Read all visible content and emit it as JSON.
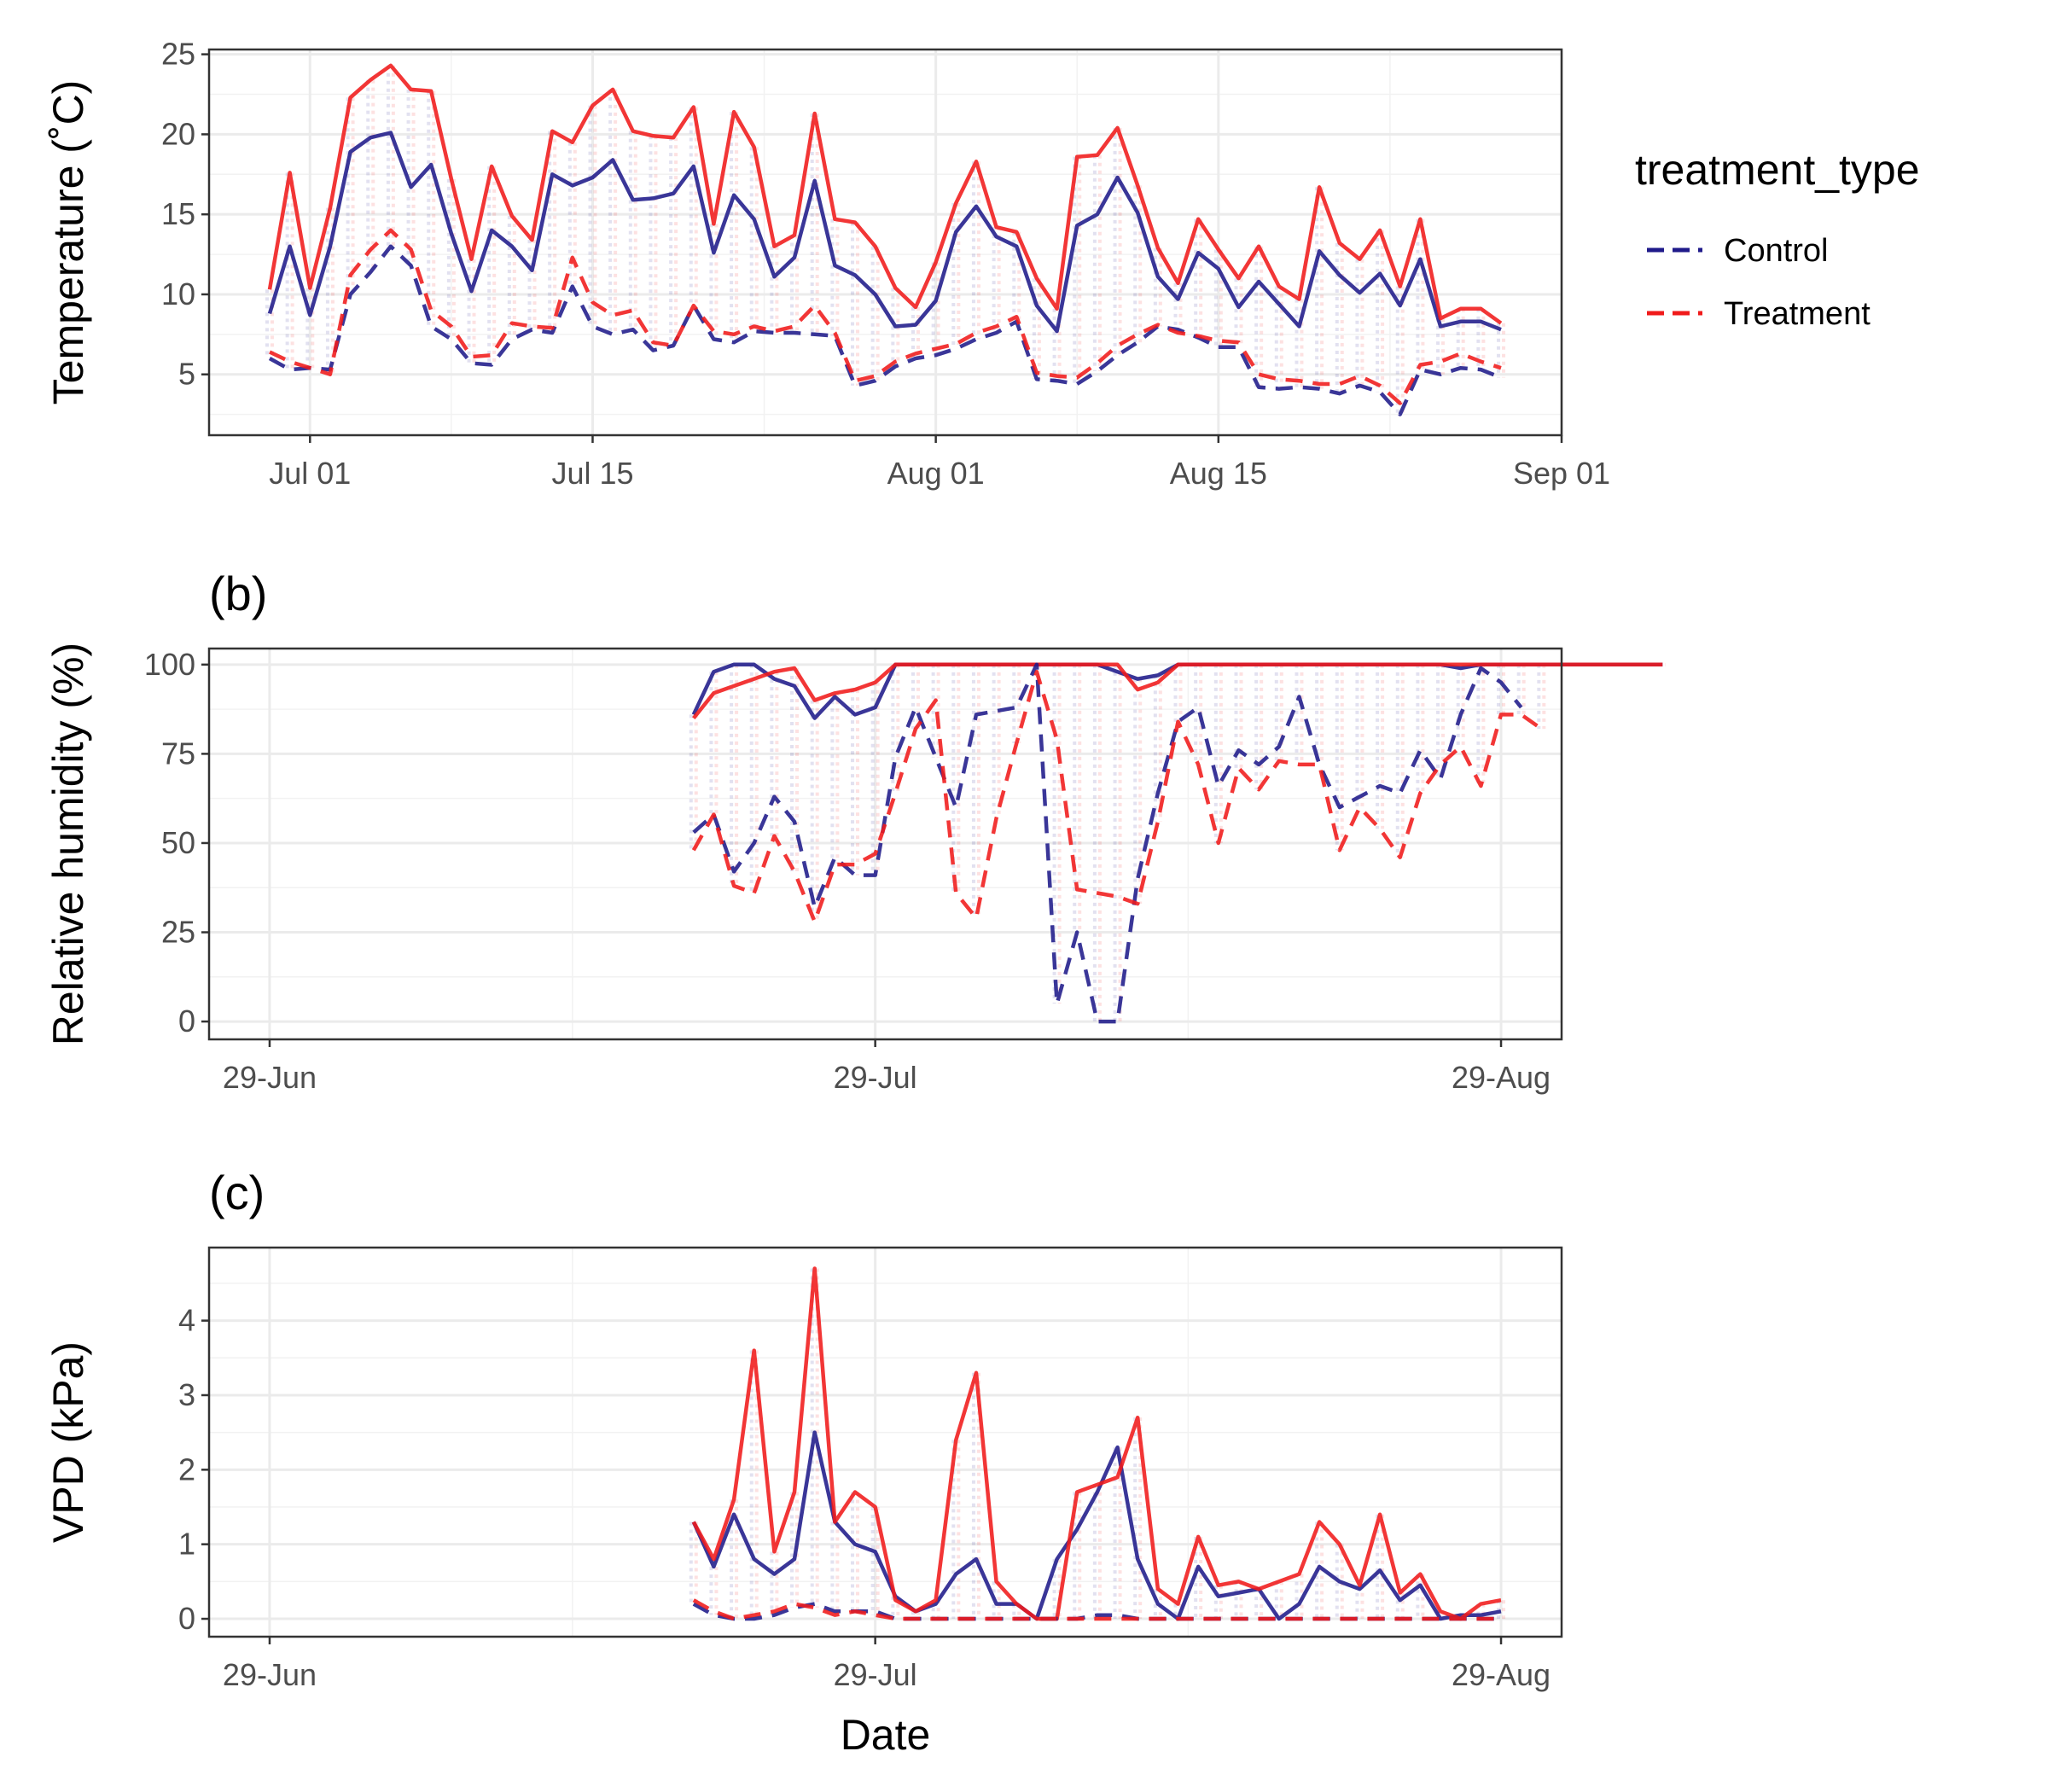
{
  "chart_data": [
    {
      "type": "line",
      "tag": "",
      "xlabel": "",
      "ylabel": "Temperature (˚C)",
      "ylim": [
        1.2,
        25.3
      ],
      "yticks": [
        5,
        10,
        15,
        20,
        25
      ],
      "xlim": [
        "2021-06-26",
        "2021-09-01"
      ],
      "xticks": [
        {
          "date": "2021-07-01",
          "label": "Jul 01"
        },
        {
          "date": "2021-07-15",
          "label": "Jul 15"
        },
        {
          "date": "2021-08-01",
          "label": "Aug 01"
        },
        {
          "date": "2021-08-15",
          "label": "Aug 15"
        },
        {
          "date": "2021-09-01",
          "label": "Sep 01"
        }
      ],
      "x_start": "2021-06-29",
      "series": [
        {
          "group": "Control",
          "stat": "max",
          "values": [
            8.8,
            13.0,
            8.7,
            13.0,
            18.9,
            19.8,
            20.1,
            16.7,
            18.1,
            13.8,
            10.2,
            14.0,
            13.0,
            11.5,
            17.5,
            16.8,
            17.3,
            18.4,
            15.9,
            16.0,
            16.3,
            18.0,
            12.6,
            16.2,
            14.7,
            11.1,
            12.3,
            17.1,
            11.8,
            11.2,
            10.0,
            8.0,
            8.1,
            9.6,
            13.9,
            15.5,
            13.6,
            13.0,
            9.3,
            7.7,
            14.3,
            15.0,
            17.3,
            15.1,
            11.1,
            9.7,
            12.6,
            11.6,
            9.2,
            10.8,
            9.4,
            8.0,
            12.7,
            11.2,
            10.1,
            11.3,
            9.3,
            12.2,
            8.0,
            8.3,
            8.3,
            7.8
          ]
        },
        {
          "group": "Treatment",
          "stat": "max",
          "values": [
            10.3,
            17.6,
            10.4,
            15.4,
            22.3,
            23.4,
            24.3,
            22.8,
            22.7,
            17.2,
            12.2,
            18.0,
            14.9,
            13.4,
            20.2,
            19.5,
            21.8,
            22.8,
            20.2,
            19.9,
            19.8,
            21.7,
            14.4,
            21.4,
            19.2,
            13.0,
            13.7,
            21.3,
            14.7,
            14.5,
            13.0,
            10.4,
            9.2,
            12.0,
            15.7,
            18.3,
            14.2,
            13.9,
            11.0,
            9.1,
            18.6,
            18.7,
            20.4,
            16.8,
            12.9,
            10.7,
            14.7,
            12.8,
            11.0,
            13.0,
            10.5,
            9.7,
            16.7,
            13.2,
            12.2,
            14.0,
            10.5,
            14.7,
            8.5,
            9.1,
            9.1,
            8.2
          ]
        },
        {
          "group": "Control",
          "stat": "min",
          "values": [
            6.0,
            5.3,
            5.4,
            5.3,
            10.0,
            11.4,
            13.0,
            11.8,
            8.0,
            7.2,
            5.7,
            5.6,
            7.2,
            7.8,
            7.6,
            10.5,
            8.0,
            7.5,
            7.8,
            6.5,
            6.8,
            9.3,
            7.2,
            7.0,
            7.7,
            7.6,
            7.6,
            7.5,
            7.4,
            4.3,
            4.6,
            5.5,
            6.0,
            6.2,
            6.6,
            7.2,
            7.6,
            8.3,
            4.7,
            4.6,
            4.4,
            5.2,
            6.2,
            7.0,
            8.0,
            7.8,
            7.3,
            6.7,
            6.7,
            4.2,
            4.1,
            4.2,
            4.1,
            3.8,
            4.3,
            3.9,
            2.5,
            5.3,
            5.0,
            5.4,
            5.3,
            4.8
          ]
        },
        {
          "group": "Treatment",
          "stat": "min",
          "values": [
            6.4,
            5.8,
            5.4,
            5.0,
            11.2,
            12.8,
            14.0,
            12.8,
            9.0,
            8.0,
            6.1,
            6.2,
            8.2,
            8.0,
            7.9,
            12.3,
            9.5,
            8.7,
            9.0,
            7.0,
            6.8,
            9.3,
            7.7,
            7.5,
            8.0,
            7.7,
            8.0,
            9.3,
            7.6,
            4.6,
            4.9,
            5.8,
            6.3,
            6.6,
            6.9,
            7.6,
            8.0,
            8.6,
            5.1,
            4.9,
            4.8,
            5.7,
            6.8,
            7.5,
            8.1,
            7.6,
            7.4,
            7.1,
            7.0,
            5.0,
            4.7,
            4.6,
            4.4,
            4.4,
            4.9,
            4.3,
            3.2,
            5.6,
            5.8,
            6.3,
            5.8,
            5.4
          ]
        }
      ]
    },
    {
      "type": "line",
      "tag": "(b)",
      "xlabel": "",
      "ylabel": "Relative humidity (%)",
      "ylim": [
        -5,
        104.5
      ],
      "yticks": [
        0,
        25,
        50,
        75,
        100
      ],
      "xlim": [
        "2021-06-26",
        "2021-09-01"
      ],
      "xticks": [
        {
          "date": "2021-06-29",
          "label": "29-Jun"
        },
        {
          "date": "2021-07-29",
          "label": "29-Jul"
        },
        {
          "date": "2021-08-29",
          "label": "29-Aug"
        }
      ],
      "x_start": "2021-07-20",
      "series": [
        {
          "group": "Control",
          "stat": "max",
          "values": [
            86,
            98,
            100,
            100,
            96,
            94,
            85,
            91,
            86,
            88,
            100,
            100,
            100,
            100,
            100,
            100,
            100,
            100,
            100,
            100,
            100,
            98,
            96,
            97,
            100,
            100,
            100,
            100,
            100,
            100,
            100,
            100,
            100,
            100,
            100,
            100,
            100,
            100,
            99,
            100,
            100,
            100,
            100,
            100,
            100,
            100,
            100,
            100,
            100
          ]
        },
        {
          "group": "Treatment",
          "stat": "max",
          "values": [
            85,
            92,
            94,
            96,
            98,
            99,
            90,
            92,
            93,
            95,
            100,
            100,
            100,
            100,
            100,
            100,
            100,
            100,
            100,
            100,
            100,
            100,
            93,
            95,
            100,
            100,
            100,
            100,
            100,
            100,
            100,
            100,
            100,
            100,
            100,
            100,
            100,
            100,
            100,
            100,
            100,
            100,
            100,
            100,
            100,
            100,
            100,
            100,
            100
          ]
        },
        {
          "group": "Control",
          "stat": "min",
          "values": [
            53,
            58,
            42,
            50,
            63,
            56,
            32,
            46,
            41,
            41,
            74,
            88,
            74,
            60,
            86,
            87,
            88,
            100,
            5,
            25,
            0,
            0,
            40,
            64,
            84,
            88,
            66,
            76,
            72,
            77,
            91,
            72,
            60,
            63,
            66,
            64,
            76,
            68,
            86,
            99,
            95,
            88
          ]
        },
        {
          "group": "Treatment",
          "stat": "min",
          "values": [
            48,
            58,
            38,
            36,
            52,
            42,
            28,
            44,
            44,
            47,
            64,
            82,
            90,
            36,
            29,
            57,
            78,
            98,
            79,
            37,
            36,
            35,
            33,
            56,
            84,
            72,
            50,
            71,
            65,
            73,
            72,
            72,
            48,
            60,
            54,
            46,
            64,
            72,
            77,
            66,
            86,
            86,
            82
          ]
        }
      ]
    },
    {
      "type": "line",
      "tag": "(c)",
      "xlabel": "Date",
      "ylabel": "VPD (kPa)",
      "ylim": [
        -0.24,
        4.98
      ],
      "yticks": [
        0,
        1,
        2,
        3,
        4
      ],
      "xlim": [
        "2021-06-26",
        "2021-09-01"
      ],
      "xticks": [
        {
          "date": "2021-06-29",
          "label": "29-Jun"
        },
        {
          "date": "2021-07-29",
          "label": "29-Jul"
        },
        {
          "date": "2021-08-29",
          "label": "29-Aug"
        }
      ],
      "x_start": "2021-07-20",
      "series": [
        {
          "group": "Control",
          "stat": "max",
          "values": [
            1.3,
            0.7,
            1.4,
            0.8,
            0.6,
            0.8,
            2.5,
            1.3,
            1.0,
            0.9,
            0.3,
            0.1,
            0.2,
            0.6,
            0.8,
            0.2,
            0.2,
            0.0,
            0.8,
            1.2,
            1.7,
            2.3,
            0.8,
            0.2,
            0.0,
            0.7,
            0.3,
            0.35,
            0.4,
            0.0,
            0.2,
            0.7,
            0.5,
            0.4,
            0.65,
            0.25,
            0.45,
            0.0,
            0.05,
            0.05,
            0.1
          ]
        },
        {
          "group": "Treatment",
          "stat": "max",
          "values": [
            1.3,
            0.8,
            1.6,
            3.6,
            0.9,
            1.7,
            4.7,
            1.3,
            1.7,
            1.5,
            0.25,
            0.1,
            0.25,
            2.4,
            3.3,
            0.5,
            0.2,
            0.0,
            0.0,
            1.7,
            1.8,
            1.9,
            2.7,
            0.4,
            0.2,
            1.1,
            0.45,
            0.5,
            0.4,
            0.5,
            0.6,
            1.3,
            1.0,
            0.45,
            1.4,
            0.35,
            0.6,
            0.1,
            0.0,
            0.2,
            0.25
          ]
        },
        {
          "group": "Control",
          "stat": "min",
          "values": [
            0.2,
            0.05,
            0.0,
            0.0,
            0.05,
            0.15,
            0.2,
            0.1,
            0.1,
            0.1,
            0.0,
            0.0,
            0.0,
            0.0,
            0.0,
            0.0,
            0.0,
            0.0,
            0.0,
            0.0,
            0.05,
            0.05,
            0.0,
            0.0,
            0.0,
            0.0,
            0.0,
            0.0,
            0.0,
            0.0,
            0.0,
            0.0,
            0.0,
            0.0,
            0.0,
            0.0,
            0.0,
            0.0,
            0.0,
            0.0,
            0.0
          ]
        },
        {
          "group": "Treatment",
          "stat": "min",
          "values": [
            0.25,
            0.1,
            0.0,
            0.05,
            0.1,
            0.2,
            0.15,
            0.05,
            0.1,
            0.05,
            0.0,
            0.0,
            0.0,
            0.0,
            0.0,
            0.0,
            0.0,
            0.0,
            0.0,
            0.0,
            0.0,
            0.0,
            0.0,
            0.0,
            0.0,
            0.0,
            0.0,
            0.0,
            0.0,
            0.0,
            0.0,
            0.0,
            0.0,
            0.0,
            0.0,
            0.0,
            0.0,
            0.0,
            0.0,
            0.0,
            0.0
          ]
        }
      ]
    }
  ],
  "legend": {
    "title": "treatment_type",
    "placement": "right",
    "items": [
      {
        "label": "Control",
        "color": "#1f1a8a"
      },
      {
        "label": "Treatment",
        "color": "#f01a1a"
      }
    ]
  },
  "colors": {
    "control": "#1f1a8a",
    "treatment": "#f01a1a"
  },
  "stat_styles": {
    "max": "solid",
    "min": "dashed"
  }
}
